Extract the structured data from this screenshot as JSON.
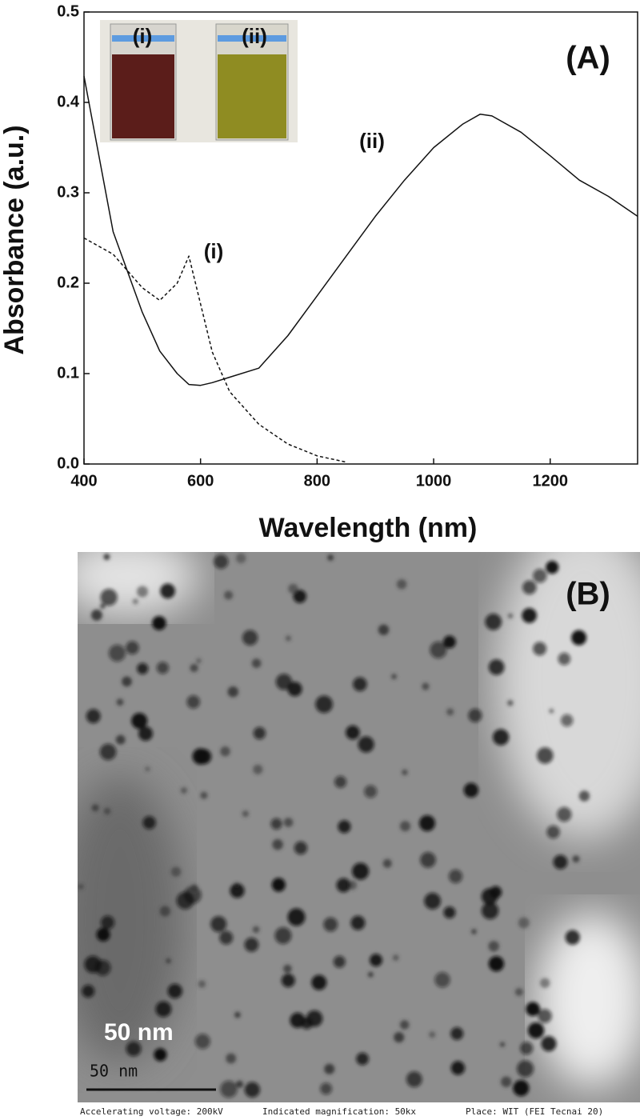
{
  "chart_data": {
    "type": "line",
    "panel_label": "(A)",
    "x_label": "Wavelength (nm)",
    "y_label": "Absorbance (a.u.)",
    "x": [
      400,
      450,
      500,
      530,
      560,
      580,
      600,
      620,
      650,
      700,
      750,
      800,
      850,
      900,
      950,
      1000,
      1050,
      1080,
      1100,
      1150,
      1200,
      1250,
      1300,
      1350
    ],
    "series": [
      {
        "name": "(i)",
        "color": "#111111",
        "dash": true,
        "values": [
          0.25,
          0.232,
          0.195,
          0.181,
          0.2,
          0.23,
          0.177,
          0.124,
          0.08,
          0.044,
          0.022,
          0.009,
          0.002,
          null,
          null,
          null,
          null,
          null,
          null,
          null,
          null,
          null,
          null,
          null
        ]
      },
      {
        "name": "(ii)",
        "color": "#111111",
        "dash": false,
        "values": [
          0.429,
          0.257,
          0.168,
          0.125,
          0.1,
          0.088,
          0.087,
          0.09,
          0.096,
          0.106,
          0.142,
          0.186,
          0.23,
          0.274,
          0.314,
          0.35,
          0.376,
          0.387,
          0.385,
          0.367,
          0.341,
          0.314,
          0.296,
          0.274
        ]
      }
    ],
    "xlim": [
      400,
      1350
    ],
    "ylim": [
      0,
      0.5
    ],
    "xticks": [
      400,
      600,
      800,
      1000,
      1200
    ],
    "yticks": [
      {
        "value": 0,
        "label": "0.0"
      },
      0.1,
      0.2,
      0.3,
      0.4,
      0.5
    ],
    "inset": {
      "labels": [
        "(i)",
        "(ii)"
      ]
    }
  },
  "image": {
    "panel_label": "(B)",
    "scale_label": "50 nm",
    "scale_bar_label": "50 nm",
    "footer": [
      "Accelerating voltage: 200kV",
      "Indicated magnification: 50kx",
      "Place: WIT (FEI Tecnai 20)"
    ]
  }
}
